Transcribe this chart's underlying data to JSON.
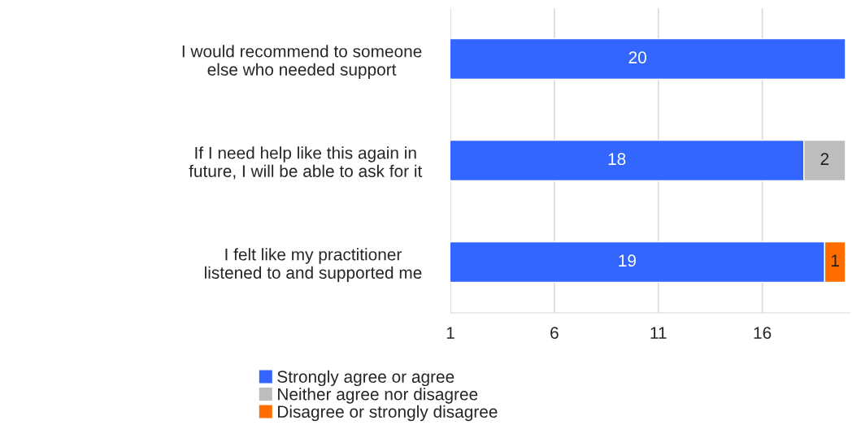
{
  "chart_data": {
    "type": "bar",
    "orientation": "horizontal",
    "stacked": true,
    "categories": [
      "I would recommend to someone else who needed support",
      "If I need help like this again in future, I will be able to ask for it",
      "I felt like my practitioner listened to and supported me"
    ],
    "series": [
      {
        "name": "Strongly agree or agree",
        "color": "#3366ff",
        "values": [
          20,
          18,
          19
        ]
      },
      {
        "name": "Neither agree nor disagree",
        "color": "#bdbdbd",
        "values": [
          null,
          2,
          null
        ]
      },
      {
        "name": "Disagree or strongly disagree",
        "color": "#ff6d01",
        "values": [
          null,
          null,
          1
        ]
      }
    ],
    "xlim": [
      1,
      20.2
    ],
    "xticks": [
      1,
      6,
      11,
      16
    ],
    "grid": "x",
    "legend": "bottom",
    "data_labels": true
  }
}
